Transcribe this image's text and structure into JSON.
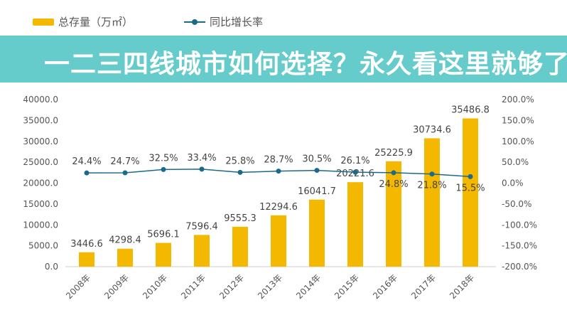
{
  "chart_data": {
    "type": "bar+line",
    "categories": [
      "2008年",
      "2009年",
      "2010年",
      "2011年",
      "2012年",
      "2013年",
      "2014年",
      "2015年",
      "2016年",
      "2017年",
      "2018年"
    ],
    "series": [
      {
        "name": "总存量（万㎡）",
        "type": "bar",
        "axis": "left",
        "color": "#f5b800",
        "values": [
          3446.6,
          4298.4,
          5696.1,
          7596.4,
          9555.3,
          12294.6,
          16041.7,
          20221.6,
          25225.9,
          30734.6,
          35486.8
        ],
        "labels": [
          "3446.6",
          "4298.4",
          "5696.1",
          "7596.4",
          "9555.3",
          "12294.6",
          "16041.7",
          "20221.6",
          "25225.9",
          "30734.6",
          "35486.8"
        ]
      },
      {
        "name": "同比增长率",
        "type": "line",
        "axis": "right",
        "color": "#1c6a8a",
        "values": [
          24.4,
          24.7,
          32.5,
          33.4,
          25.8,
          28.7,
          30.5,
          26.1,
          24.8,
          21.8,
          15.5
        ],
        "labels": [
          "24.4%",
          "24.7%",
          "32.5%",
          "33.4%",
          "25.8%",
          "28.7%",
          "30.5%",
          "26.1%",
          "24.8%",
          "21.8%",
          "15.5%"
        ]
      }
    ],
    "ylim_left": [
      0,
      40000
    ],
    "yticks_left": [
      "0.0",
      "5000.0",
      "10000.0",
      "15000.0",
      "20000.0",
      "25000.0",
      "30000.0",
      "35000.0",
      "40000.0"
    ],
    "ylim_right": [
      -200,
      200
    ],
    "yticks_right": [
      "-200.0%",
      "-150.0%",
      "-100.0%",
      "-50.0%",
      "0.0%",
      "50.0%",
      "100.0%",
      "150.0%",
      "200.0%"
    ],
    "legend": "top-left",
    "grid": false
  },
  "banner": {
    "title": "一二三四线城市如何选择？永久看这里就够了",
    "color": "#50c4c4"
  }
}
